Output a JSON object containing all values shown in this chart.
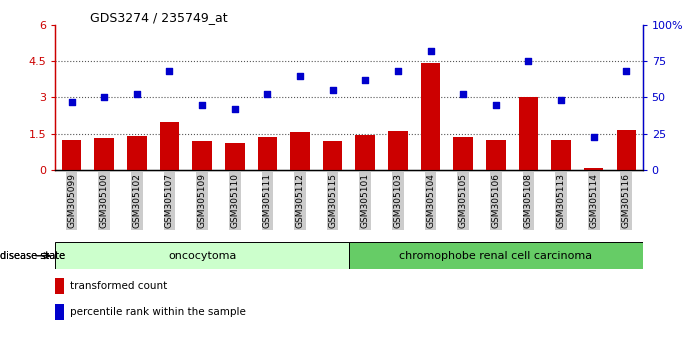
{
  "title": "GDS3274 / 235749_at",
  "samples": [
    "GSM305099",
    "GSM305100",
    "GSM305102",
    "GSM305107",
    "GSM305109",
    "GSM305110",
    "GSM305111",
    "GSM305112",
    "GSM305115",
    "GSM305101",
    "GSM305103",
    "GSM305104",
    "GSM305105",
    "GSM305106",
    "GSM305108",
    "GSM305113",
    "GSM305114",
    "GSM305116"
  ],
  "transformed_count": [
    1.25,
    1.3,
    1.4,
    2.0,
    1.2,
    1.1,
    1.35,
    1.55,
    1.2,
    1.45,
    1.6,
    4.4,
    1.35,
    1.25,
    3.0,
    1.25,
    0.1,
    1.65
  ],
  "percentile_rank": [
    47,
    50,
    52,
    68,
    45,
    42,
    52,
    65,
    55,
    62,
    68,
    82,
    52,
    45,
    75,
    48,
    23,
    68
  ],
  "oncocytoma_count": 9,
  "chromophobe_count": 9,
  "group1_label": "oncocytoma",
  "group2_label": "chromophobe renal cell carcinoma",
  "disease_state_label": "disease state",
  "legend_red": "transformed count",
  "legend_blue": "percentile rank within the sample",
  "bar_color": "#cc0000",
  "dot_color": "#0000cc",
  "left_axis_color": "#cc0000",
  "right_axis_color": "#0000cc",
  "ylim_left": [
    0,
    6
  ],
  "ylim_right": [
    0,
    100
  ],
  "yticks_left": [
    0,
    1.5,
    3.0,
    4.5,
    6.0
  ],
  "ytick_labels_left": [
    "0",
    "1.5",
    "3",
    "4.5",
    "6"
  ],
  "yticks_right": [
    0,
    25,
    50,
    75,
    100
  ],
  "ytick_labels_right": [
    "0",
    "25",
    "50",
    "75",
    "100%"
  ],
  "group1_color": "#ccffcc",
  "group2_color": "#66cc66",
  "tick_bg_color": "#cccccc",
  "dotted_line_color": "#555555",
  "background_color": "#ffffff"
}
